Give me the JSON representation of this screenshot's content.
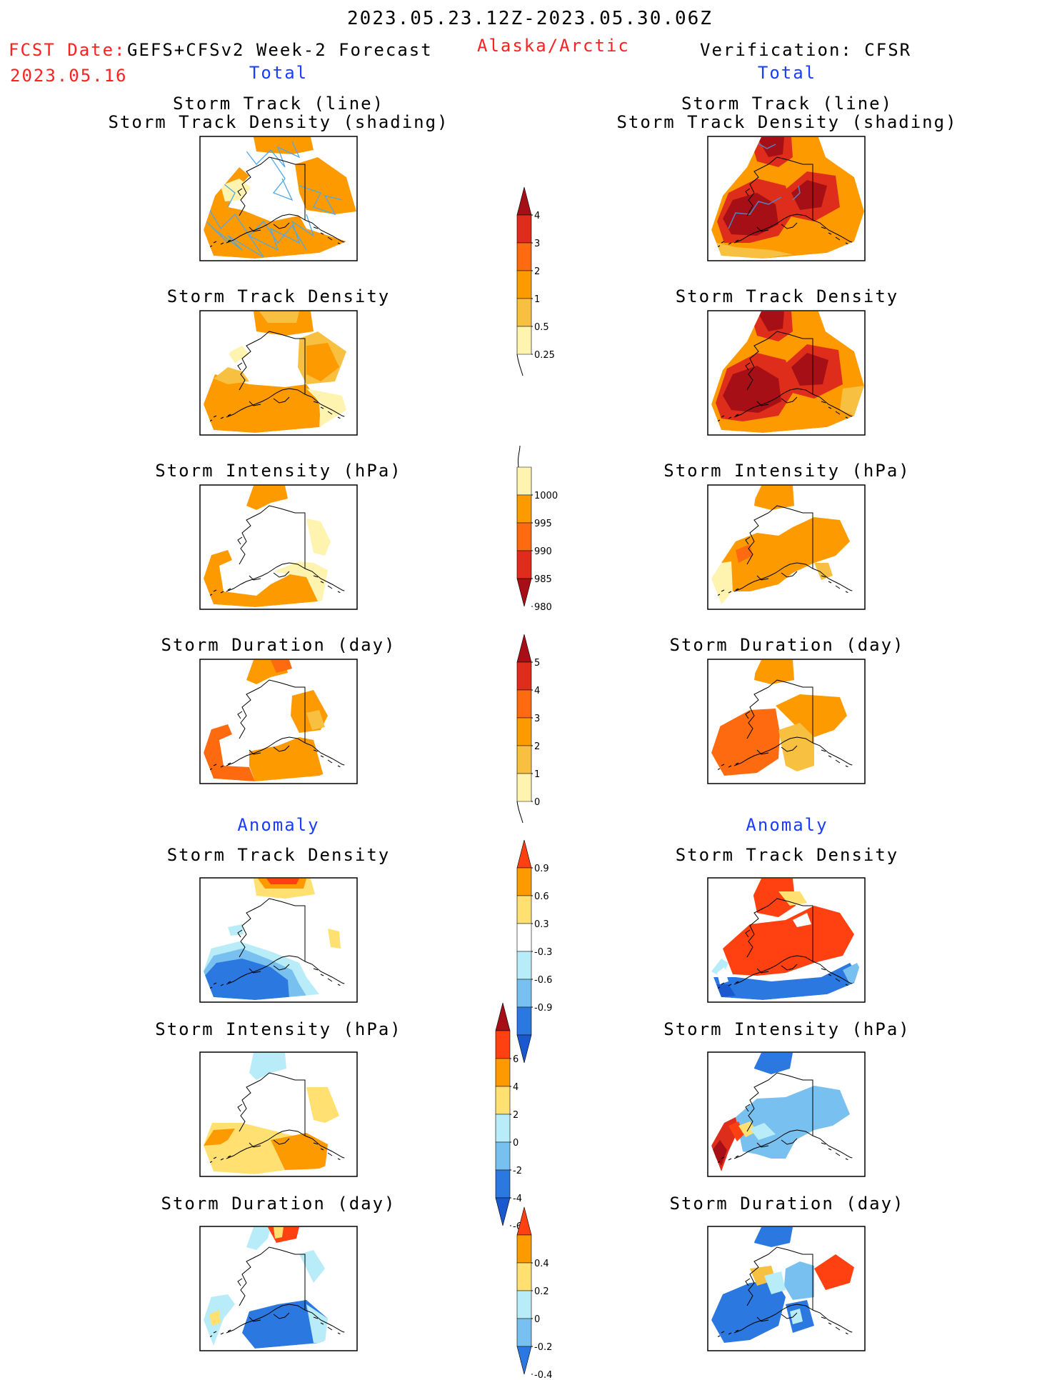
{
  "header": {
    "date_range": "2023.05.23.12Z-2023.05.30.06Z",
    "fcst_label": "FCST Date:",
    "fcst_model": "GEFS+CFSv2 Week-2 Forecast",
    "fcst_date": "2023.05.16",
    "region": "Alaska/Arctic",
    "verification": "Verification: CFSR"
  },
  "columns": {
    "left_total": "Total",
    "right_total": "Total",
    "left_anomaly": "Anomaly",
    "right_anomaly": "Anomaly"
  },
  "titles": {
    "track_line": "Storm Track (line)",
    "track_density_shading": "Storm Track Density (shading)",
    "density": "Storm Track Density",
    "intensity": "Storm Intensity (hPa)",
    "duration": "Storm Duration (day)"
  },
  "colorbars": {
    "density": {
      "labels": [
        "4",
        "3",
        "2",
        "1",
        "0.5",
        "0.25"
      ],
      "colors": [
        "#a50f15",
        "#de2d1a",
        "#fd6a10",
        "#fd9a00",
        "#f8c040",
        "#fff3b0"
      ]
    },
    "intensity": {
      "labels": [
        "1000",
        "995",
        "990",
        "985",
        "980"
      ],
      "colors": [
        "#fff3b0",
        "#fd9a00",
        "#fd6a10",
        "#de2d1a",
        "#a50f15"
      ]
    },
    "duration": {
      "labels": [
        "5",
        "4",
        "3",
        "2",
        "1",
        "0"
      ],
      "colors": [
        "#a50f15",
        "#de2d1a",
        "#fd6a10",
        "#fd9a00",
        "#f8c040",
        "#fff3b0"
      ]
    },
    "density_anom": {
      "labels": [
        "0.9",
        "0.6",
        "0.3",
        "-0.3",
        "-0.6",
        "-0.9"
      ],
      "colors": [
        "#ff4010",
        "#fd9a00",
        "#ffe070",
        "#ffffff",
        "#b8ecf8",
        "#78c0f0",
        "#2a78e0",
        "#1a58d0"
      ]
    },
    "intensity_anom": {
      "labels": [
        "6",
        "4",
        "2",
        "0",
        "-2",
        "-4",
        "-6"
      ],
      "colors": [
        "#a50f15",
        "#ff4010",
        "#fd9a00",
        "#ffe070",
        "#b8ecf8",
        "#78c0f0",
        "#2a78e0",
        "#1a58d0"
      ]
    },
    "duration_anom": {
      "labels": [
        "0.4",
        "0.2",
        "0",
        "-0.2",
        "-0.4"
      ],
      "colors": [
        "#ff4010",
        "#fd9a00",
        "#ffe070",
        "#b8ecf8",
        "#78c0f0",
        "#2a78e0"
      ]
    }
  }
}
